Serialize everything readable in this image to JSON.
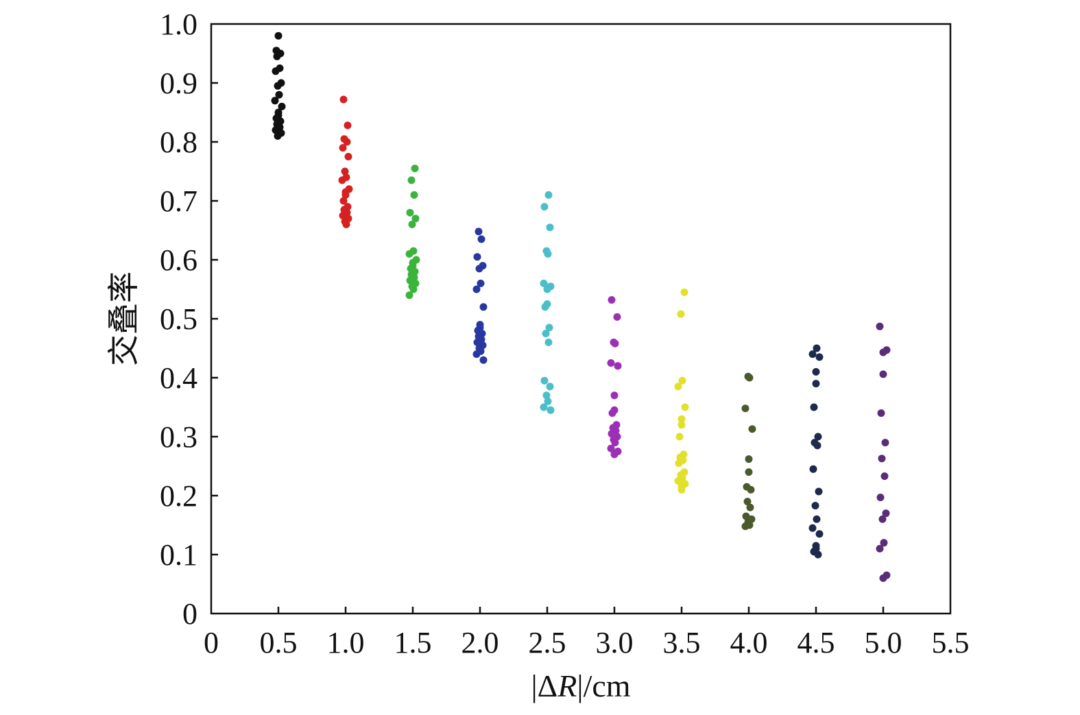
{
  "chart_data": {
    "type": "scatter",
    "title": "",
    "xlabel_parts": [
      "|Δ",
      "R",
      "|/cm"
    ],
    "ylabel": "交叠率",
    "xlim": [
      0,
      5.5
    ],
    "ylim": [
      0,
      1.0
    ],
    "x_ticks": [
      0,
      0.5,
      1.0,
      1.5,
      2.0,
      2.5,
      3.0,
      3.5,
      4.0,
      4.5,
      5.0,
      5.5
    ],
    "x_tick_labels": [
      "0",
      "0.5",
      "1.0",
      "1.5",
      "2.0",
      "2.5",
      "3.0",
      "3.5",
      "4.0",
      "4.5",
      "5.0",
      "5.5"
    ],
    "y_ticks": [
      0,
      0.1,
      0.2,
      0.3,
      0.4,
      0.5,
      0.6,
      0.7,
      0.8,
      0.9,
      1.0
    ],
    "y_tick_labels": [
      "0",
      "0.1",
      "0.2",
      "0.3",
      "0.4",
      "0.5",
      "0.6",
      "0.7",
      "0.8",
      "0.9",
      "1.0"
    ],
    "grid": false,
    "legend": "none",
    "series": [
      {
        "x": 0.5,
        "color": "#111111",
        "y": [
          0.98,
          0.955,
          0.95,
          0.945,
          0.925,
          0.92,
          0.9,
          0.895,
          0.88,
          0.87,
          0.86,
          0.85,
          0.845,
          0.84,
          0.835,
          0.83,
          0.825,
          0.82,
          0.815,
          0.81
        ]
      },
      {
        "x": 1.0,
        "color": "#d62121",
        "y": [
          0.872,
          0.828,
          0.805,
          0.8,
          0.79,
          0.775,
          0.75,
          0.74,
          0.735,
          0.72,
          0.715,
          0.71,
          0.7,
          0.69,
          0.685,
          0.68,
          0.675,
          0.67,
          0.665,
          0.66
        ]
      },
      {
        "x": 1.5,
        "color": "#3cb43c",
        "y": [
          0.755,
          0.735,
          0.71,
          0.68,
          0.67,
          0.66,
          0.615,
          0.61,
          0.6,
          0.595,
          0.59,
          0.585,
          0.58,
          0.575,
          0.57,
          0.565,
          0.56,
          0.555,
          0.55,
          0.54
        ]
      },
      {
        "x": 2.0,
        "color": "#2838a0",
        "y": [
          0.648,
          0.635,
          0.605,
          0.59,
          0.585,
          0.56,
          0.55,
          0.52,
          0.49,
          0.485,
          0.48,
          0.475,
          0.47,
          0.465,
          0.46,
          0.455,
          0.45,
          0.445,
          0.44,
          0.43
        ]
      },
      {
        "x": 2.5,
        "color": "#4bbec8",
        "y": [
          0.71,
          0.69,
          0.655,
          0.615,
          0.61,
          0.56,
          0.555,
          0.55,
          0.525,
          0.52,
          0.485,
          0.475,
          0.46,
          0.395,
          0.385,
          0.37,
          0.36,
          0.35,
          0.345
        ]
      },
      {
        "x": 3.0,
        "color": "#9b30b4",
        "y": [
          0.532,
          0.503,
          0.46,
          0.458,
          0.425,
          0.42,
          0.37,
          0.345,
          0.34,
          0.32,
          0.315,
          0.31,
          0.305,
          0.3,
          0.295,
          0.29,
          0.28,
          0.275,
          0.27
        ]
      },
      {
        "x": 3.5,
        "color": "#e1e12c",
        "y": [
          0.545,
          0.508,
          0.395,
          0.385,
          0.35,
          0.33,
          0.32,
          0.3,
          0.27,
          0.265,
          0.26,
          0.255,
          0.24,
          0.235,
          0.23,
          0.225,
          0.22,
          0.215,
          0.21
        ]
      },
      {
        "x": 4.0,
        "color": "#4b5a2d",
        "y": [
          0.402,
          0.4,
          0.348,
          0.313,
          0.262,
          0.24,
          0.215,
          0.21,
          0.19,
          0.18,
          0.165,
          0.16,
          0.155,
          0.15,
          0.148
        ]
      },
      {
        "x": 4.5,
        "color": "#1e2a4b",
        "y": [
          0.45,
          0.44,
          0.435,
          0.41,
          0.39,
          0.35,
          0.3,
          0.29,
          0.285,
          0.245,
          0.207,
          0.183,
          0.16,
          0.145,
          0.135,
          0.115,
          0.11,
          0.105,
          0.1
        ]
      },
      {
        "x": 5.0,
        "color": "#5a2d78",
        "y": [
          0.487,
          0.447,
          0.443,
          0.406,
          0.34,
          0.29,
          0.263,
          0.233,
          0.197,
          0.17,
          0.16,
          0.12,
          0.11,
          0.065,
          0.06
        ]
      }
    ]
  }
}
